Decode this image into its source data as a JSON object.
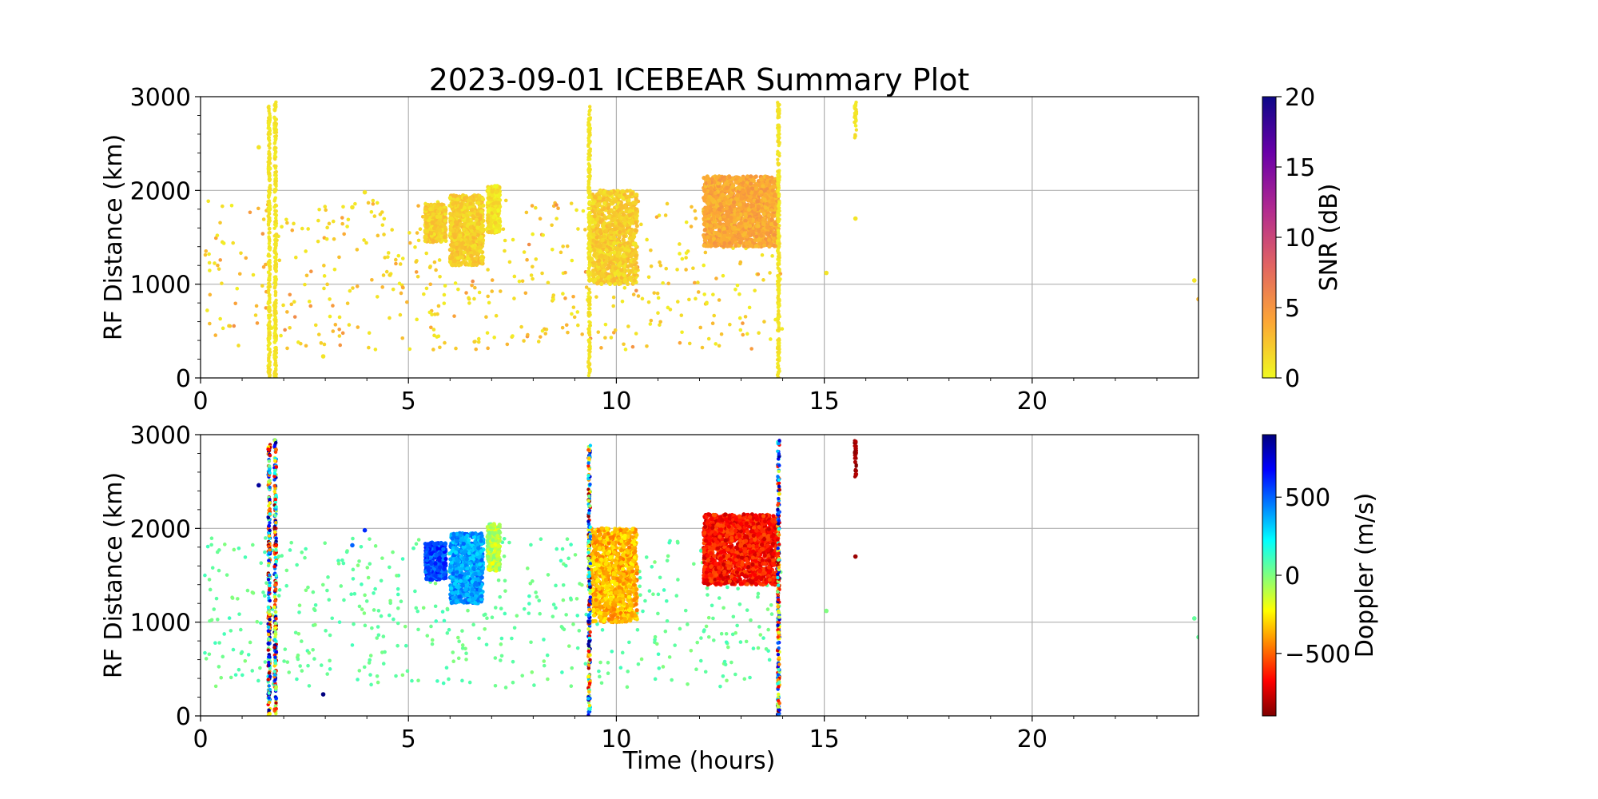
{
  "figure": {
    "title": "2023-09-01 ICEBEAR Summary Plot"
  },
  "chart_data": [
    {
      "type": "scatter",
      "panel": "top",
      "ylabel": "RF Distance (km)",
      "xlabel": "",
      "xlim": [
        0,
        24
      ],
      "ylim": [
        0,
        3000
      ],
      "xticks": [
        0,
        5,
        10,
        15,
        20
      ],
      "yticks": [
        0,
        1000,
        2000,
        3000
      ],
      "grid": true,
      "color_variable": "snr",
      "colorbar": {
        "label": "SNR (dB)",
        "colormap": "plasma_r",
        "range": [
          0,
          20
        ],
        "ticks": [
          0,
          5,
          10,
          15,
          20
        ],
        "colors": [
          "#f0f921",
          "#fca636",
          "#e16462",
          "#b12a90",
          "#6a00a8",
          "#0d0887"
        ]
      },
      "vertical_streaks": [
        {
          "x": 1.65,
          "y_min": 0,
          "y_max": 2900,
          "snr": 1
        },
        {
          "x": 1.8,
          "y_min": 0,
          "y_max": 2950,
          "snr": 1
        },
        {
          "x": 9.35,
          "y_min": 0,
          "y_max": 2900,
          "snr": 1
        },
        {
          "x": 13.9,
          "y_min": 0,
          "y_max": 2950,
          "snr": 1
        },
        {
          "x": 15.75,
          "y_min": 2550,
          "y_max": 2950,
          "snr": 1
        }
      ],
      "clusters": [
        {
          "x_min": 5.4,
          "x_max": 5.9,
          "y_min": 1450,
          "y_max": 1850,
          "snr": 2
        },
        {
          "x_min": 6.0,
          "x_max": 6.8,
          "y_min": 1200,
          "y_max": 1950,
          "snr": 2
        },
        {
          "x_min": 6.9,
          "x_max": 7.2,
          "y_min": 1550,
          "y_max": 2050,
          "snr": 1
        },
        {
          "x_min": 9.4,
          "x_max": 10.5,
          "y_min": 1000,
          "y_max": 2000,
          "snr": 2
        },
        {
          "x_min": 12.1,
          "x_max": 13.9,
          "y_min": 1400,
          "y_max": 2150,
          "snr": 4
        }
      ],
      "scatter_region": {
        "x_min": 0.1,
        "x_max": 14.0,
        "y_min": 300,
        "y_max": 1900
      },
      "isolated_points": [
        {
          "x": 3.65,
          "y": 1820,
          "snr": 1
        },
        {
          "x": 3.95,
          "y": 1980,
          "snr": 1
        },
        {
          "x": 1.4,
          "y": 2460,
          "snr": 1
        },
        {
          "x": 15.75,
          "y": 1700,
          "snr": 1
        },
        {
          "x": 15.05,
          "y": 1120,
          "snr": 1
        },
        {
          "x": 23.9,
          "y": 1040,
          "snr": 1
        },
        {
          "x": 24.0,
          "y": 840,
          "snr": 3
        },
        {
          "x": 2.95,
          "y": 230,
          "snr": 1
        }
      ]
    },
    {
      "type": "scatter",
      "panel": "bottom",
      "ylabel": "RF Distance (km)",
      "xlabel": "Time (hours)",
      "xlim": [
        0,
        24
      ],
      "ylim": [
        0,
        3000
      ],
      "xticks": [
        0,
        5,
        10,
        15,
        20
      ],
      "yticks": [
        0,
        1000,
        2000,
        3000
      ],
      "grid": true,
      "color_variable": "doppler",
      "colorbar": {
        "label": "Doppler (m/s)",
        "colormap": "jet_r",
        "range": [
          -900,
          900
        ],
        "ticks": [
          500,
          0,
          -500
        ],
        "tick_labels": [
          "500",
          "0",
          "−500"
        ],
        "colors": [
          "#7f0000",
          "#ff0000",
          "#ff7f00",
          "#ffff00",
          "#7fff7f",
          "#00ffff",
          "#007fff",
          "#0000ff",
          "#00007f"
        ]
      },
      "vertical_streaks": [
        {
          "x": 1.65,
          "y_min": 0,
          "y_max": 2900,
          "doppler": "mixed"
        },
        {
          "x": 1.8,
          "y_min": 0,
          "y_max": 2950,
          "doppler": "mixed"
        },
        {
          "x": 9.35,
          "y_min": 0,
          "y_max": 2900,
          "doppler": "mixed"
        },
        {
          "x": 13.9,
          "y_min": 0,
          "y_max": 2950,
          "doppler": "mixed"
        },
        {
          "x": 15.75,
          "y_min": 2550,
          "y_max": 2950,
          "doppler": -850
        }
      ],
      "clusters": [
        {
          "x_min": 5.4,
          "x_max": 5.9,
          "y_min": 1450,
          "y_max": 1850,
          "doppler": 550
        },
        {
          "x_min": 6.0,
          "x_max": 6.8,
          "y_min": 1200,
          "y_max": 1950,
          "doppler": 400
        },
        {
          "x_min": 6.9,
          "x_max": 7.2,
          "y_min": 1550,
          "y_max": 2050,
          "doppler": -100
        },
        {
          "x_min": 9.4,
          "x_max": 10.5,
          "y_min": 1000,
          "y_max": 2000,
          "doppler": -350
        },
        {
          "x_min": 12.1,
          "x_max": 13.9,
          "y_min": 1400,
          "y_max": 2150,
          "doppler": -650
        }
      ],
      "scatter_region": {
        "x_min": 0.1,
        "x_max": 14.0,
        "y_min": 300,
        "y_max": 1900,
        "doppler": 50
      },
      "isolated_points": [
        {
          "x": 3.65,
          "y": 1820,
          "doppler": 500
        },
        {
          "x": 3.95,
          "y": 1980,
          "doppler": 600
        },
        {
          "x": 1.4,
          "y": 2460,
          "doppler": 850
        },
        {
          "x": 15.75,
          "y": 1700,
          "doppler": -850
        },
        {
          "x": 15.05,
          "y": 1120,
          "doppler": 0
        },
        {
          "x": 23.9,
          "y": 1040,
          "doppler": 50
        },
        {
          "x": 24.0,
          "y": 840,
          "doppler": 50
        },
        {
          "x": 2.95,
          "y": 230,
          "doppler": 900
        }
      ]
    }
  ]
}
